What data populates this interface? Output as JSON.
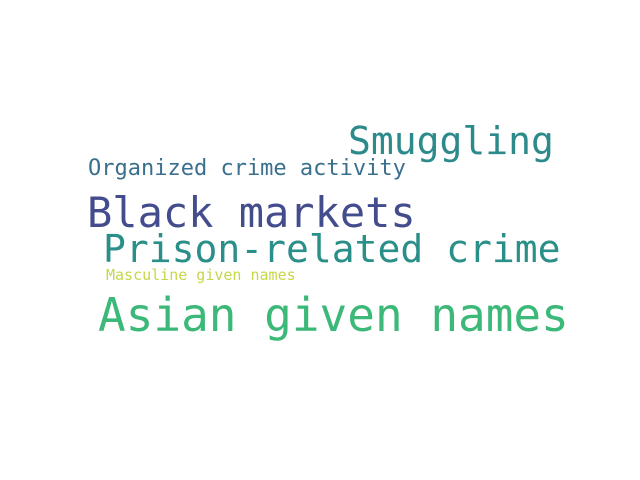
{
  "words": [
    {
      "text": "Smuggling",
      "color": "#2c8a8a"
    },
    {
      "text": "Organized crime activity",
      "color": "#3a6f8e"
    },
    {
      "text": "Black markets",
      "color": "#434c8c"
    },
    {
      "text": "Prison-related crime",
      "color": "#2a8f88"
    },
    {
      "text": "Masculine given names",
      "color": "#c8d64a"
    },
    {
      "text": "Asian given names",
      "color": "#3cb878"
    }
  ]
}
